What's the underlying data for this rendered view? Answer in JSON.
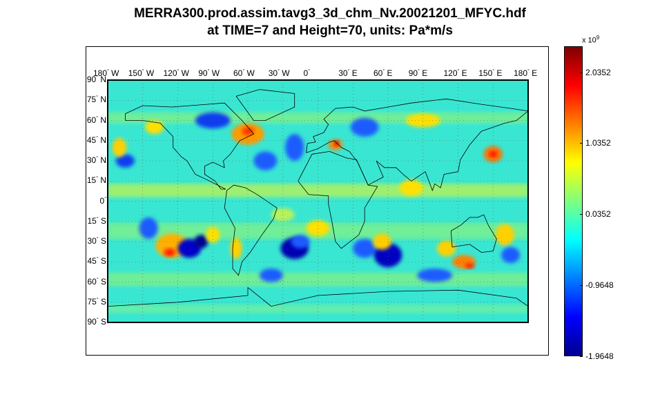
{
  "title": {
    "line1": "MERRA300.prod.assim.tavg3_3d_chm_Nv.20021201_MFYC.hdf",
    "line2": "at TIME=7 and Height=70, units: Pa*m/s"
  },
  "chart_data": {
    "type": "heatmap",
    "projection": "equirectangular world map with coastlines",
    "x_tick_labels": [
      "180° W",
      "150° W",
      "120° W",
      "90° W",
      "60° W",
      "30° W",
      "0°",
      "30° E",
      "60° E",
      "90° E",
      "120° E",
      "150° E",
      "180° E"
    ],
    "y_tick_labels": [
      "90° N",
      "75° N",
      "60° N",
      "45° N",
      "30° N",
      "15° N",
      "0°",
      "15° S",
      "30° S",
      "45° S",
      "60° S",
      "75° S",
      "90° S"
    ],
    "xlim": [
      -180,
      180
    ],
    "ylim": [
      -90,
      90
    ],
    "grid": true,
    "colorbar": {
      "exponent_label": "x 10",
      "exponent": "9",
      "ticks": [
        "2.0352",
        "1.0352",
        "0.0352",
        "-0.9648",
        "-1.9648"
      ],
      "range": [
        -1.9648,
        2.4
      ],
      "colormap": "jet"
    }
  }
}
